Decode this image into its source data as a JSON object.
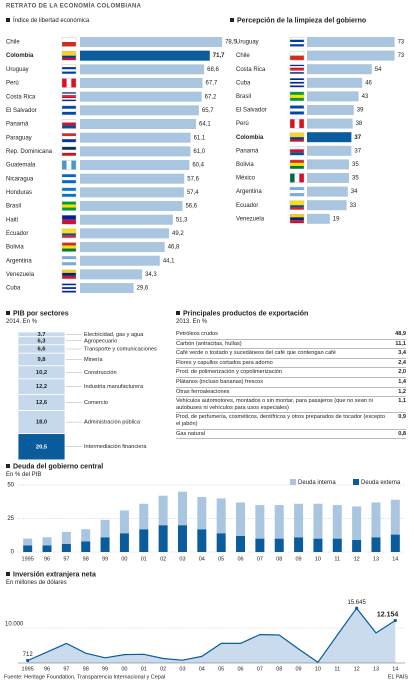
{
  "title": "RETRATO DE LA ECONOMÍA COLOMBIANA",
  "source": "Fuente: Heritage Foundation, Transparencia Internacional y Cepal",
  "brand": "EL PAÍS",
  "chart_data": [
    {
      "type": "hbar",
      "title": "Índice de libertad económica",
      "categories": [
        "Chile",
        "Colombia",
        "Uruguay",
        "Perú",
        "Costa Rica",
        "El Salvador",
        "Panamá",
        "Paraguay",
        "Rep. Dominicana",
        "Guatemala",
        "Nicaragua",
        "Honduras",
        "Brasil",
        "Haití",
        "Ecuador",
        "Bolivia",
        "Argentina",
        "Venezuela",
        "Cuba"
      ],
      "values": [
        78.5,
        71.7,
        68.6,
        67.7,
        67.2,
        65.7,
        64.1,
        61.1,
        61.0,
        60.4,
        57.6,
        57.4,
        56.6,
        51.3,
        49.2,
        46.8,
        44.1,
        34.3,
        29.6
      ],
      "value_labels": [
        "78,5",
        "71,7",
        "68,6",
        "67,7",
        "67,2",
        "65,7",
        "64,1",
        "61,1",
        "61,0",
        "60,4",
        "57,6",
        "57,4",
        "56,6",
        "51,3",
        "49,2",
        "46,8",
        "44,1",
        "34,3",
        "29,6"
      ],
      "colors": [
        "#a9c5df",
        "#0b5c9c",
        "#a9c5df",
        "#a9c5df",
        "#a9c5df",
        "#a9c5df",
        "#a9c5df",
        "#a9c5df",
        "#a9c5df",
        "#a9c5df",
        "#a9c5df",
        "#a9c5df",
        "#a9c5df",
        "#a9c5df",
        "#a9c5df",
        "#a9c5df",
        "#a9c5df",
        "#a9c5df",
        "#a9c5df"
      ]
    },
    {
      "type": "hbar",
      "title": "Percepción de la limpieza del gobierno",
      "categories": [
        "Uruguay",
        "Chile",
        "Costa Rica",
        "Cuba",
        "Brasil",
        "El Salvador",
        "Perú",
        "Colombia",
        "Panamá",
        "Bolivia",
        "México",
        "Argentina",
        "Ecuador",
        "Venezuela"
      ],
      "values": [
        73,
        73,
        54,
        46,
        43,
        39,
        38,
        37,
        37,
        35,
        35,
        34,
        33,
        19
      ],
      "colors": [
        "#a9c5df",
        "#a9c5df",
        "#a9c5df",
        "#a9c5df",
        "#a9c5df",
        "#a9c5df",
        "#a9c5df",
        "#0b5c9c",
        "#a9c5df",
        "#a9c5df",
        "#a9c5df",
        "#a9c5df",
        "#a9c5df",
        "#a9c5df"
      ]
    },
    {
      "type": "stack",
      "title": "PIB por sectores",
      "subtitle": "2014. En %",
      "categories": [
        "Electricidad, gas y agua",
        "Agropecuario",
        "Transporte y comunicaciones",
        "Minería",
        "Construcción",
        "Industria manufacturera",
        "Comercio",
        "Administración pública",
        "Intermediación financiera"
      ],
      "values": [
        3.7,
        6.3,
        6.6,
        9.8,
        10.2,
        12.2,
        12.6,
        18.0,
        20.5
      ],
      "value_labels": [
        "3,7",
        "6,3",
        "6,6",
        "9,8",
        "10,2",
        "12,2",
        "12,6",
        "18,0",
        "20,5"
      ],
      "colors": [
        "#c6d9ec",
        "#c6d9ec",
        "#c6d9ec",
        "#c6d9ec",
        "#c6d9ec",
        "#c6d9ec",
        "#c6d9ec",
        "#c6d9ec",
        "#0b5c9c"
      ]
    },
    {
      "type": "stacked_bar",
      "title": "Deuda del gobierno central",
      "subtitle": "En % del PIB",
      "categories": [
        "1995",
        "96",
        "97",
        "98",
        "99",
        "00",
        "01",
        "02",
        "03",
        "04",
        "05",
        "06",
        "07",
        "08",
        "09",
        "10",
        "11",
        "12",
        "13",
        "14"
      ],
      "series": [
        {
          "name": "Deuda interna",
          "color": "#a9c5df",
          "values": [
            5,
            6,
            9,
            9,
            13,
            17,
            19,
            22,
            25,
            24,
            26,
            25,
            25,
            25,
            25,
            26,
            25,
            25,
            26,
            26
          ]
        },
        {
          "name": "Deuda externa",
          "color": "#0b5c9c",
          "values": [
            5,
            5,
            6,
            8,
            11,
            14,
            17,
            20,
            20,
            17,
            14,
            12,
            10,
            10,
            11,
            10,
            10,
            9,
            11,
            13
          ]
        }
      ],
      "ylim": [
        0,
        50
      ],
      "yticks": [
        0,
        25,
        50
      ],
      "grid": true,
      "legend": "top-right"
    },
    {
      "type": "area",
      "title": "Inversión extranjera neta",
      "subtitle": "En millones de dólares",
      "categories": [
        "1995",
        "96",
        "97",
        "98",
        "99",
        "00",
        "01",
        "02",
        "03",
        "04",
        "05",
        "06",
        "07",
        "08",
        "09",
        "10",
        "11",
        "12",
        "13",
        "14"
      ],
      "values": [
        712,
        3100,
        5600,
        2800,
        1500,
        2400,
        2500,
        1300,
        800,
        1900,
        5600,
        5600,
        8100,
        8000,
        4000,
        200,
        8000,
        15645,
        8600,
        12154
      ],
      "value_labels": [
        "712",
        null,
        null,
        null,
        null,
        null,
        null,
        null,
        null,
        null,
        null,
        null,
        null,
        null,
        null,
        null,
        null,
        "15.645",
        null,
        "12.154"
      ],
      "color": "#0b5c9c",
      "fill": "#c9dbec",
      "ylim": [
        0,
        17000
      ],
      "yticks": [
        {
          "value": 10000,
          "label": "10.000"
        }
      ],
      "grid": true
    }
  ],
  "exports": {
    "title": "Principales productos de exportación",
    "subtitle": "2013. En %",
    "rows": [
      [
        "Petróleos crudos",
        "48,9"
      ],
      [
        "Carbón (antracitas, hullas)",
        "11,1"
      ],
      [
        "Café verde o tostado y sucedáneos del café que contengan café",
        "3,4"
      ],
      [
        "Flores y capullos cortados para adorno",
        "2,4"
      ],
      [
        "Prod. de polimerización y copolimerización",
        "2,0"
      ],
      [
        "Plátanos (incluso bananas) frescos",
        "1,4"
      ],
      [
        "Otras ferroaleaciones",
        "1,2"
      ],
      [
        "Vehículos automotores, montados o sin montar, para pasajeros (que no sean ni autobuses ni vehículos para usos especiales)",
        "1,1"
      ],
      [
        "Prod. de perfumería, cosméticos, dentífricos y otros preparados de tocador (excepto el jabón)",
        "0,9"
      ],
      [
        "Gas natural",
        "0,8"
      ]
    ]
  }
}
